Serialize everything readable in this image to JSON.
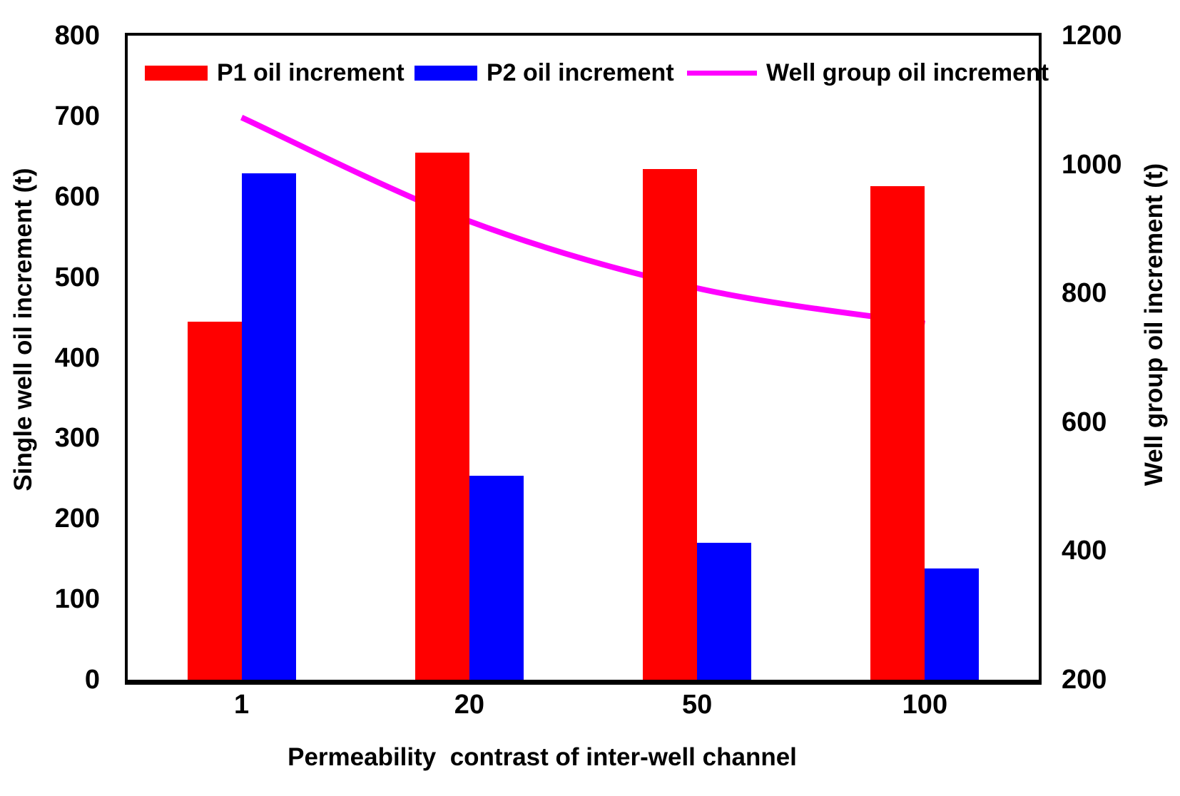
{
  "chart_data": {
    "type": "combo-bar-line",
    "title": "",
    "categories": [
      "1",
      "20",
      "50",
      "100"
    ],
    "series": [
      {
        "name": "P1 oil increment",
        "chart_type": "bar",
        "color": "#ff0000",
        "y_axis": "left",
        "values": [
          445,
          655,
          634,
          613
        ]
      },
      {
        "name": "P2 oil increment",
        "chart_type": "bar",
        "color": "#0000ff",
        "y_axis": "left",
        "values": [
          629,
          253,
          170,
          138
        ]
      },
      {
        "name": "Well group oil increment",
        "chart_type": "line",
        "color": "#ff00ff",
        "y_axis": "right",
        "values": [
          1073,
          912,
          808,
          753
        ]
      }
    ],
    "x_axis": {
      "label": "Permeability  contrast of inter-well channel",
      "tick_labels": [
        "1",
        "20",
        "50",
        "100"
      ]
    },
    "left_axis": {
      "label": "Single well oil increment (t)",
      "min": 0,
      "max": 800,
      "tick_labels": [
        "800",
        "700",
        "600",
        "500",
        "400",
        "300",
        "200",
        "100",
        "0"
      ]
    },
    "right_axis": {
      "label": "Well group oil increment (t)",
      "min": 200,
      "max": 1200,
      "tick_labels": [
        "1200",
        "1000",
        "800",
        "600",
        "400",
        "200"
      ]
    },
    "grid": false,
    "legend_position": "top-inside",
    "background_color": "#ffffff",
    "frame_color": "#000000",
    "text_color": "#000000"
  }
}
